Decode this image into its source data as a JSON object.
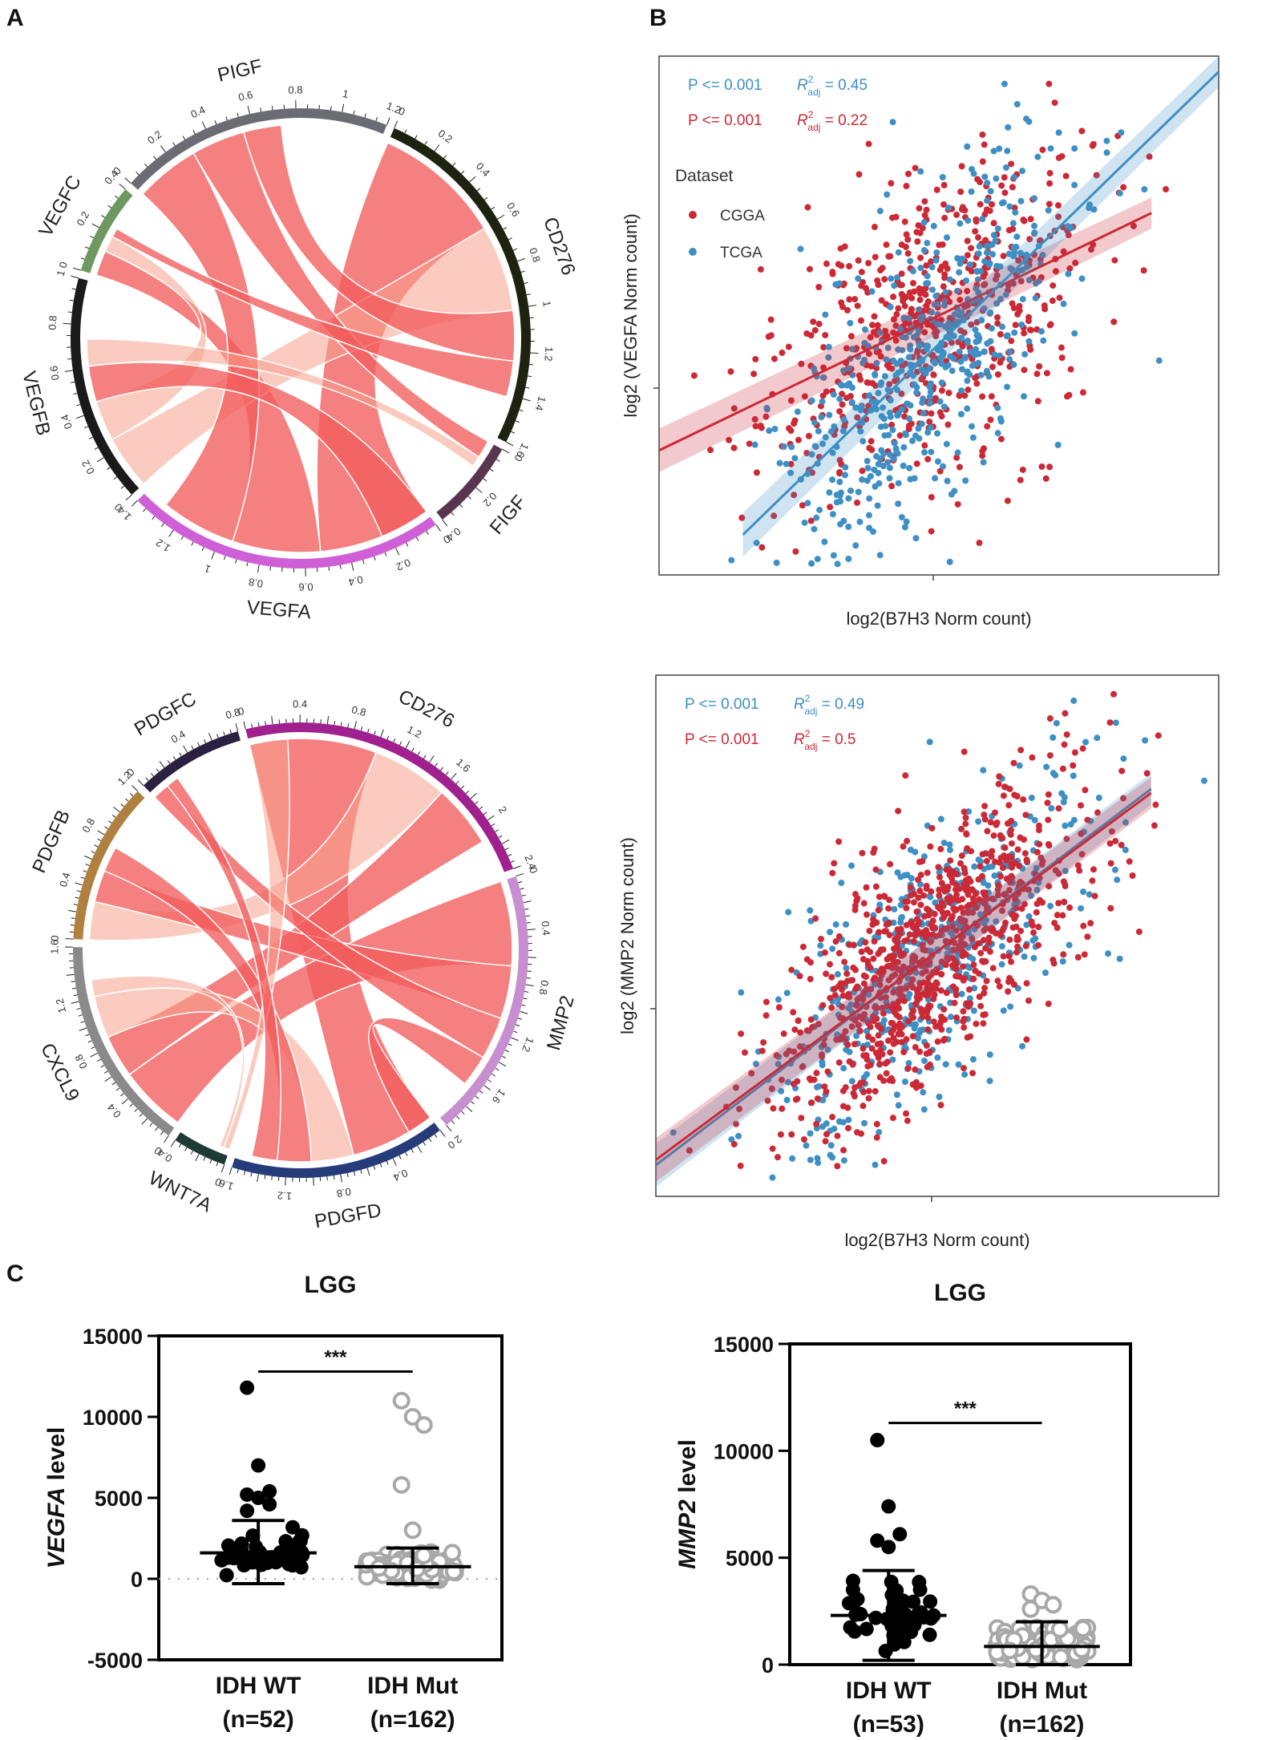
{
  "panels": {
    "a": "A",
    "b": "B",
    "c": "C"
  },
  "colors": {
    "cgga": "#cc2936",
    "tcga": "#3e8fc4",
    "ribbon": "#f25c5c",
    "ribbon_light": "#f7a08c"
  },
  "chart_data": [
    {
      "id": "chord1",
      "type": "chord",
      "sectors": [
        {
          "label": "CD276",
          "color": "#1e2310",
          "max": 1.6,
          "ticks": [
            "0",
            "0.2",
            "0.4",
            "0.6",
            "0.8",
            "1",
            "1.2",
            "1.4",
            "1.6"
          ]
        },
        {
          "label": "FIGF",
          "color": "#5a3550",
          "max": 0.4,
          "ticks": [
            "0",
            "0.2",
            "0.4"
          ]
        },
        {
          "label": "VEGFA",
          "color": "#cf5fd6",
          "max": 1.4,
          "ticks": [
            "0",
            "0.2",
            "0.4",
            "0.6",
            "0.8",
            "1",
            "1.2",
            "1.4"
          ]
        },
        {
          "label": "VEGFB",
          "color": "#1a1a1a",
          "max": 1.0,
          "ticks": [
            "0",
            "0.2",
            "0.4",
            "0.6",
            "0.8",
            "1"
          ]
        },
        {
          "label": "VEGFC",
          "color": "#6e9860",
          "max": 0.4,
          "ticks": [
            "0",
            "0.2",
            "0.4"
          ]
        },
        {
          "label": "PIGF",
          "color": "#6b6b73",
          "max": 1.2,
          "ticks": [
            "0",
            "0.2",
            "0.4",
            "0.6",
            "0.8",
            "1",
            "1.2"
          ]
        }
      ],
      "links": [
        [
          0,
          2,
          0.9
        ],
        [
          0,
          3,
          0.6
        ],
        [
          0,
          5,
          0.35
        ],
        [
          1,
          5,
          0.5
        ],
        [
          2,
          4,
          0.7
        ],
        [
          2,
          5,
          0.6
        ],
        [
          3,
          4,
          0.45
        ],
        [
          1,
          3,
          0.3
        ],
        [
          0,
          4,
          0.25
        ],
        [
          2,
          3,
          0.4
        ]
      ]
    },
    {
      "id": "chord2",
      "type": "chord",
      "sectors": [
        {
          "label": "CD276",
          "color": "#a0208f",
          "max": 2.4,
          "ticks": [
            "0",
            "0.4",
            "0.8",
            "1.2",
            "1.6",
            "2",
            "2.4"
          ]
        },
        {
          "label": "MMP2",
          "color": "#c88fd0",
          "max": 2.0,
          "ticks": [
            "0",
            "0.4",
            "0.8",
            "1.2",
            "1.6",
            "2"
          ]
        },
        {
          "label": "PDGFD",
          "color": "#253b7a",
          "max": 1.6,
          "ticks": [
            "0",
            "0.4",
            "0.8",
            "1.2",
            "1.6"
          ]
        },
        {
          "label": "WNT7A",
          "color": "#1e3a35",
          "max": 0.4,
          "ticks": [
            "0",
            "0.4"
          ]
        },
        {
          "label": "CXCL9",
          "color": "#8a8a8a",
          "max": 1.6,
          "ticks": [
            "0",
            "0.4",
            "0.8",
            "1.2",
            "1.6"
          ]
        },
        {
          "label": "PDGFB",
          "color": "#b08040",
          "max": 1.2,
          "ticks": [
            "0",
            "0.4",
            "0.8",
            "1.2"
          ]
        },
        {
          "label": "PDGFC",
          "color": "#2a2040",
          "max": 0.8,
          "ticks": [
            "0",
            "0.4",
            "0.8"
          ]
        }
      ],
      "links": [
        [
          0,
          2,
          1.0
        ],
        [
          0,
          5,
          0.6
        ],
        [
          0,
          4,
          0.5
        ],
        [
          1,
          4,
          0.8
        ],
        [
          1,
          5,
          0.5
        ],
        [
          2,
          5,
          0.4
        ],
        [
          2,
          4,
          0.5
        ],
        [
          3,
          0,
          0.3
        ],
        [
          6,
          1,
          0.4
        ],
        [
          6,
          2,
          0.3
        ],
        [
          3,
          4,
          0.2
        ],
        [
          1,
          2,
          0.3
        ]
      ]
    },
    {
      "id": "scatter1",
      "type": "scatter",
      "xlabel": "log2(B7H3 Norm count)",
      "ylabel": "log2 (VEGFA Norm count)",
      "legend_title": "Dataset",
      "series": [
        {
          "name": "CGGA",
          "color": "#cc2936",
          "n": 640,
          "slope": 0.52,
          "intercept": 0.24,
          "sd": 0.11
        },
        {
          "name": "TCGA",
          "color": "#3e8fc4",
          "n": 520,
          "slope": 1.05,
          "intercept": -0.08,
          "sd": 0.11
        }
      ],
      "stats": [
        {
          "p": "P <= 0.001",
          "r": "R",
          "sup": "2",
          "sub": "adj",
          "val": " = 0.45",
          "color": "#3e8fc4"
        },
        {
          "p": "P <= 0.001",
          "r": "R",
          "sup": "2",
          "sub": "adj",
          "val": " = 0.22",
          "color": "#cc2936"
        }
      ]
    },
    {
      "id": "scatter2",
      "type": "scatter",
      "xlabel": "log2(B7H3 Norm count)",
      "ylabel": "log2 (MMP2 Norm count)",
      "series": [
        {
          "name": "TCGA",
          "color": "#3e8fc4",
          "n": 520,
          "slope": 0.82,
          "intercept": 0.06,
          "sd": 0.1
        },
        {
          "name": "CGGA",
          "color": "#cc2936",
          "n": 900,
          "slope": 0.8,
          "intercept": 0.07,
          "sd": 0.09
        }
      ],
      "stats": [
        {
          "p": "P <= 0.001",
          "r": "R",
          "sup": "2",
          "sub": "adj",
          "val": " = 0.49",
          "color": "#3e8fc4"
        },
        {
          "p": "P <= 0.001",
          "r": "R",
          "sup": "2",
          "sub": "adj",
          "val": " = 0.5",
          "color": "#cc2936"
        }
      ]
    },
    {
      "id": "dot1",
      "type": "dot",
      "title": "LGG",
      "ylabel_gene": "VEGFA",
      "ylabel_rest": " level",
      "ylim": [
        -5000,
        15000
      ],
      "yticks": [
        "15000",
        "10000",
        "5000",
        "0",
        "-5000"
      ],
      "groups": [
        {
          "name": "IDH WT",
          "n": "(n=52)",
          "count": 52,
          "mean": 1600,
          "sd_low": -300,
          "sd_high": 3600,
          "color": "#000000",
          "filled": true,
          "outliers": [
            11800,
            7000,
            5400,
            5200,
            5000,
            4600,
            4200
          ]
        },
        {
          "name": "IDH Mut",
          "n": "(n=162)",
          "count": 162,
          "mean": 750,
          "sd_low": -300,
          "sd_high": 1900,
          "color": "#a8a8a8",
          "filled": false,
          "outliers": [
            11000,
            10000,
            9500,
            5800,
            3000
          ]
        }
      ],
      "significance": "***"
    },
    {
      "id": "dot2",
      "type": "dot",
      "title": "LGG",
      "ylabel_gene": "MMP2",
      "ylabel_rest": " level",
      "ylim": [
        0,
        15000
      ],
      "yticks": [
        "15000",
        "10000",
        "5000",
        "0"
      ],
      "groups": [
        {
          "name": "IDH WT",
          "n": "(n=53)",
          "count": 53,
          "mean": 2300,
          "sd_low": 200,
          "sd_high": 4400,
          "color": "#000000",
          "filled": true,
          "outliers": [
            10500,
            7400,
            6100,
            5800,
            5500
          ]
        },
        {
          "name": "IDH Mut",
          "n": "(n=162)",
          "count": 162,
          "mean": 850,
          "sd_low": 0,
          "sd_high": 2000,
          "color": "#a8a8a8",
          "filled": false,
          "outliers": [
            3300,
            3000,
            2800,
            2600
          ]
        }
      ],
      "significance": "***"
    }
  ]
}
